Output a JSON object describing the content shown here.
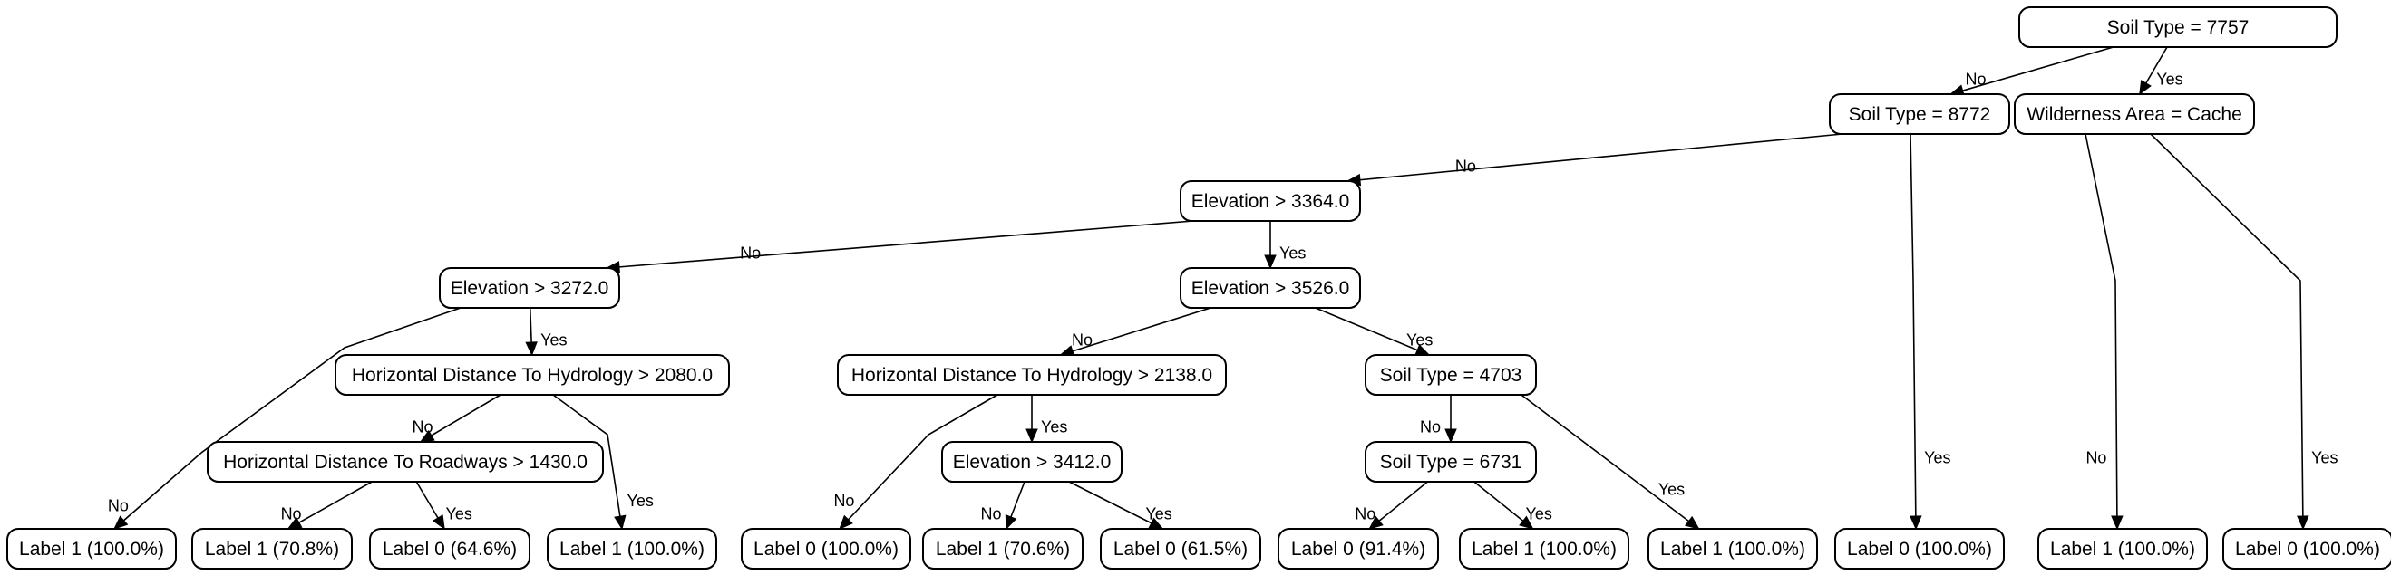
{
  "nodes": [
    {
      "id": "n0",
      "label": "Soil Type = 7757"
    },
    {
      "id": "n1",
      "label": "Soil Type = 8772"
    },
    {
      "id": "n2",
      "label": "Wilderness Area = Cache"
    },
    {
      "id": "n3",
      "label": "Elevation > 3364.0"
    },
    {
      "id": "n4",
      "label": "Elevation > 3272.0"
    },
    {
      "id": "n5",
      "label": "Elevation > 3526.0"
    },
    {
      "id": "n6",
      "label": "Horizontal Distance To Hydrology > 2080.0"
    },
    {
      "id": "n7",
      "label": "Horizontal Distance To Hydrology > 2138.0"
    },
    {
      "id": "n8",
      "label": "Soil Type = 4703"
    },
    {
      "id": "n9",
      "label": "Horizontal Distance To Roadways > 1430.0"
    },
    {
      "id": "n10",
      "label": "Elevation > 3412.0"
    },
    {
      "id": "n11",
      "label": "Soil Type = 6731"
    },
    {
      "id": "l1",
      "label": "Label 1 (100.0%)"
    },
    {
      "id": "l2",
      "label": "Label 1 (70.8%)"
    },
    {
      "id": "l3",
      "label": "Label 0 (64.6%)"
    },
    {
      "id": "l4",
      "label": "Label 1 (100.0%)"
    },
    {
      "id": "l5",
      "label": "Label 0 (100.0%)"
    },
    {
      "id": "l6",
      "label": "Label 1 (70.6%)"
    },
    {
      "id": "l7",
      "label": "Label 0 (61.5%)"
    },
    {
      "id": "l8",
      "label": "Label 0 (91.4%)"
    },
    {
      "id": "l9",
      "label": "Label 1 (100.0%)"
    },
    {
      "id": "l10",
      "label": "Label 1 (100.0%)"
    },
    {
      "id": "l11",
      "label": "Label 0 (100.0%)"
    },
    {
      "id": "l12",
      "label": "Label 1 (100.0%)"
    },
    {
      "id": "l13",
      "label": "Label 0 (100.0%)"
    }
  ],
  "edges": [
    {
      "from": "n0",
      "to": "n1",
      "label": "No"
    },
    {
      "from": "n0",
      "to": "n2",
      "label": "Yes"
    },
    {
      "from": "n1",
      "to": "n3",
      "label": "No"
    },
    {
      "from": "n1",
      "to": "l11",
      "label": "Yes"
    },
    {
      "from": "n2",
      "to": "l12",
      "label": "No"
    },
    {
      "from": "n2",
      "to": "l13",
      "label": "Yes"
    },
    {
      "from": "n3",
      "to": "n4",
      "label": "No"
    },
    {
      "from": "n3",
      "to": "n5",
      "label": "Yes"
    },
    {
      "from": "n4",
      "to": "l1",
      "label": "No"
    },
    {
      "from": "n4",
      "to": "n6",
      "label": "Yes"
    },
    {
      "from": "n6",
      "to": "n9",
      "label": "No"
    },
    {
      "from": "n6",
      "to": "l4",
      "label": "Yes"
    },
    {
      "from": "n9",
      "to": "l2",
      "label": "No"
    },
    {
      "from": "n9",
      "to": "l3",
      "label": "Yes"
    },
    {
      "from": "n5",
      "to": "n7",
      "label": "No"
    },
    {
      "from": "n5",
      "to": "n8",
      "label": "Yes"
    },
    {
      "from": "n7",
      "to": "l5",
      "label": "No"
    },
    {
      "from": "n7",
      "to": "n10",
      "label": "Yes"
    },
    {
      "from": "n10",
      "to": "l6",
      "label": "No"
    },
    {
      "from": "n10",
      "to": "l7",
      "label": "Yes"
    },
    {
      "from": "n8",
      "to": "n11",
      "label": "No"
    },
    {
      "from": "n8",
      "to": "l10",
      "label": "Yes"
    },
    {
      "from": "n11",
      "to": "l8",
      "label": "No"
    },
    {
      "from": "n11",
      "to": "l9",
      "label": "Yes"
    }
  ]
}
